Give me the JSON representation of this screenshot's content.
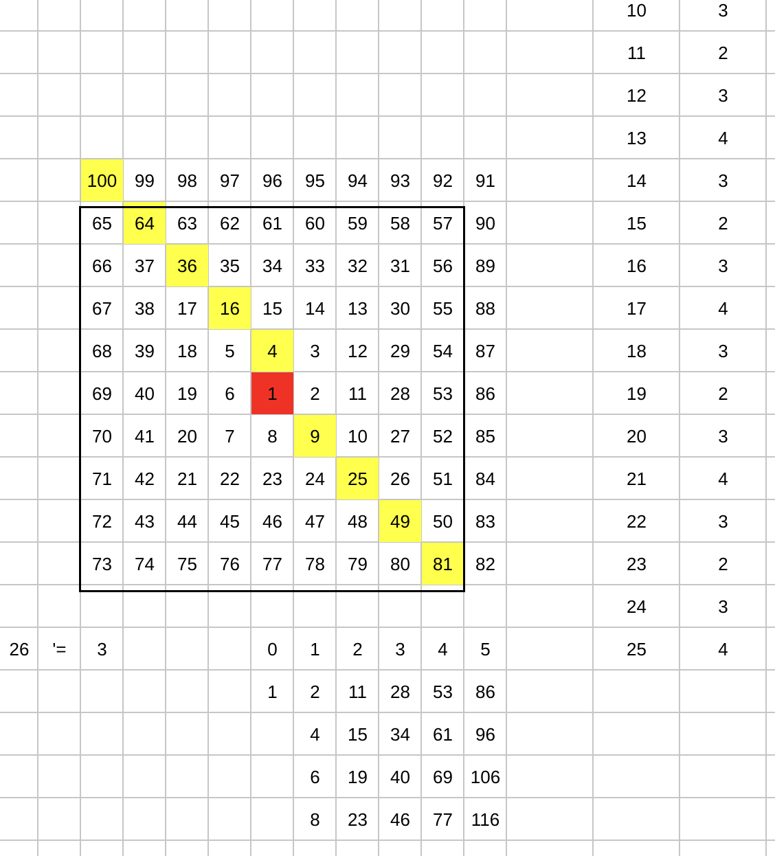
{
  "colors": {
    "highlight": "#ffff4d",
    "center": "#ee3326",
    "gridline": "#c6c6c6",
    "border": "#000000"
  },
  "spiral": {
    "top_row": [
      "100",
      "99",
      "98",
      "97",
      "96",
      "95",
      "94",
      "93",
      "92",
      "91"
    ],
    "rows": [
      [
        "65",
        "64",
        "63",
        "62",
        "61",
        "60",
        "59",
        "58",
        "57",
        "90"
      ],
      [
        "66",
        "37",
        "36",
        "35",
        "34",
        "33",
        "32",
        "31",
        "56",
        "89"
      ],
      [
        "67",
        "38",
        "17",
        "16",
        "15",
        "14",
        "13",
        "30",
        "55",
        "88"
      ],
      [
        "68",
        "39",
        "18",
        "5",
        "4",
        "3",
        "12",
        "29",
        "54",
        "87"
      ],
      [
        "69",
        "40",
        "19",
        "6",
        "1",
        "2",
        "11",
        "28",
        "53",
        "86"
      ],
      [
        "70",
        "41",
        "20",
        "7",
        "8",
        "9",
        "10",
        "27",
        "52",
        "85"
      ],
      [
        "71",
        "42",
        "21",
        "22",
        "23",
        "24",
        "25",
        "26",
        "51",
        "84"
      ],
      [
        "72",
        "43",
        "44",
        "45",
        "46",
        "47",
        "48",
        "49",
        "50",
        "83"
      ],
      [
        "73",
        "74",
        "75",
        "76",
        "77",
        "78",
        "79",
        "80",
        "81",
        "82"
      ]
    ],
    "highlighted": [
      "100",
      "64",
      "36",
      "16",
      "4",
      "9",
      "25",
      "49",
      "81"
    ],
    "center_value": "1"
  },
  "formula_row": {
    "input": "26",
    "operator": "'=",
    "result": "3"
  },
  "index_table": {
    "header": [
      "0",
      "1",
      "2",
      "3",
      "4",
      "5"
    ],
    "rows": [
      [
        "1",
        "2",
        "11",
        "28",
        "53",
        "86"
      ],
      [
        "",
        "4",
        "15",
        "34",
        "61",
        "96"
      ],
      [
        "",
        "6",
        "19",
        "40",
        "69",
        "106"
      ],
      [
        "",
        "8",
        "23",
        "46",
        "77",
        "116"
      ]
    ]
  },
  "distance_table": {
    "n": [
      "10",
      "11",
      "12",
      "13",
      "14",
      "15",
      "16",
      "17",
      "18",
      "19",
      "20",
      "21",
      "22",
      "23",
      "24",
      "25"
    ],
    "d": [
      "3",
      "2",
      "3",
      "4",
      "3",
      "2",
      "3",
      "4",
      "3",
      "2",
      "3",
      "4",
      "3",
      "2",
      "3",
      "4"
    ]
  }
}
